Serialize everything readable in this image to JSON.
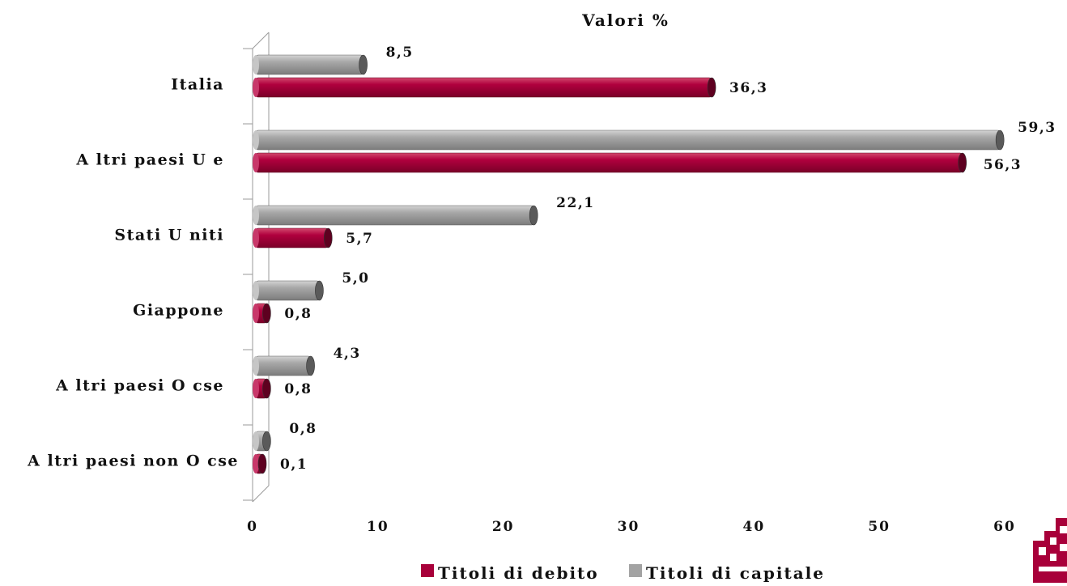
{
  "chart_data": {
    "type": "bar",
    "orientation": "horizontal",
    "title": "Valori %",
    "xlabel": "",
    "ylabel": "",
    "categories": [
      "Italia",
      "Altri paesi Ue",
      "Stati Uniti",
      "Giappone",
      "Altri paesi Ocse",
      "Altri paesi non Ocse"
    ],
    "category_labels": [
      "Italia",
      "A ltri paesi U e",
      "Stati U niti",
      "Giappone",
      "A ltri paesi O cse",
      "A ltri paesi non O cse"
    ],
    "series": [
      {
        "name": "Titoli di debito",
        "values": [
          36.3,
          56.3,
          5.7,
          0.8,
          0.8,
          0.1
        ],
        "labels": [
          "36,3",
          "56,3",
          "5,7",
          "0,8",
          "0,8",
          "0,1"
        ],
        "color": "#A8003A"
      },
      {
        "name": "Titoli di capitale",
        "values": [
          8.5,
          59.3,
          22.1,
          5.0,
          4.3,
          0.8
        ],
        "labels": [
          "8,5",
          "59,3",
          "22,1",
          "5,0",
          "4,3",
          "0,8"
        ],
        "color": "#A3A3A3"
      }
    ],
    "xlim": [
      0,
      60
    ],
    "ticks": [
      0,
      10,
      20,
      30,
      40,
      50,
      60
    ],
    "grid": false,
    "legend_position": "bottom",
    "bar_style": "3d-cylinder",
    "logo": "partial-red-logo-bottom-right"
  }
}
